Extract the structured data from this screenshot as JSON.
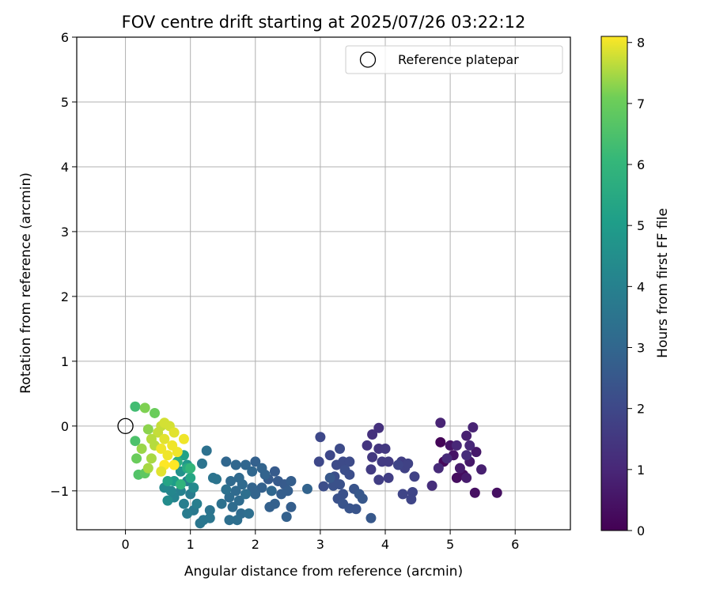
{
  "chart_data": {
    "type": "scatter",
    "title": "FOV centre drift starting at 2025/07/26 03:22:12",
    "xlabel": "Angular distance from reference (arcmin)",
    "ylabel": "Rotation from reference (arcmin)",
    "xlim": [
      -0.75,
      6.85
    ],
    "ylim": [
      -1.6,
      6.0
    ],
    "xticks": [
      "0",
      "1",
      "2",
      "3",
      "4",
      "5",
      "6"
    ],
    "yticks": [
      "−1",
      "0",
      "1",
      "2",
      "3",
      "4",
      "5",
      "6"
    ],
    "grid": true,
    "legend": {
      "position": "top-right",
      "entries": [
        "Reference platepar"
      ]
    },
    "reference_point": {
      "x": 0,
      "y": 0
    },
    "colorbar": {
      "label": "Hours from first FF file",
      "range": [
        0,
        8.1
      ],
      "ticks": [
        "0",
        "1",
        "2",
        "3",
        "4",
        "5",
        "6",
        "7",
        "8"
      ],
      "colormap": "viridis"
    },
    "points": [
      {
        "x": 4.85,
        "y": -0.25,
        "c": 0.1
      },
      {
        "x": 4.9,
        "y": -0.55,
        "c": 0.2
      },
      {
        "x": 5.1,
        "y": -0.8,
        "c": 0.3
      },
      {
        "x": 5.2,
        "y": -0.75,
        "c": 0.3
      },
      {
        "x": 5.38,
        "y": -1.03,
        "c": 0.4
      },
      {
        "x": 5.72,
        "y": -1.03,
        "c": 0.4
      },
      {
        "x": 5.0,
        "y": -0.3,
        "c": 0.5
      },
      {
        "x": 5.05,
        "y": -0.45,
        "c": 0.5
      },
      {
        "x": 5.3,
        "y": -0.55,
        "c": 0.6
      },
      {
        "x": 5.4,
        "y": -0.4,
        "c": 0.6
      },
      {
        "x": 5.15,
        "y": -0.65,
        "c": 0.7
      },
      {
        "x": 5.25,
        "y": -0.8,
        "c": 0.7
      },
      {
        "x": 5.48,
        "y": -0.67,
        "c": 0.8
      },
      {
        "x": 5.25,
        "y": -0.15,
        "c": 0.8
      },
      {
        "x": 5.35,
        "y": -0.02,
        "c": 0.9
      },
      {
        "x": 4.85,
        "y": 0.05,
        "c": 0.9
      },
      {
        "x": 5.3,
        "y": -0.3,
        "c": 1.0
      },
      {
        "x": 5.1,
        "y": -0.3,
        "c": 1.0
      },
      {
        "x": 4.95,
        "y": -0.5,
        "c": 1.1
      },
      {
        "x": 4.82,
        "y": -0.65,
        "c": 1.1
      },
      {
        "x": 4.72,
        "y": -0.92,
        "c": 1.2
      },
      {
        "x": 5.25,
        "y": -0.45,
        "c": 1.2
      },
      {
        "x": 3.9,
        "y": -0.03,
        "c": 1.3
      },
      {
        "x": 3.8,
        "y": -0.13,
        "c": 1.3
      },
      {
        "x": 3.72,
        "y": -0.3,
        "c": 1.4
      },
      {
        "x": 3.9,
        "y": -0.35,
        "c": 1.4
      },
      {
        "x": 4.0,
        "y": -0.35,
        "c": 1.5
      },
      {
        "x": 3.8,
        "y": -0.48,
        "c": 1.5
      },
      {
        "x": 3.95,
        "y": -0.55,
        "c": 1.6
      },
      {
        "x": 4.05,
        "y": -0.55,
        "c": 1.6
      },
      {
        "x": 3.78,
        "y": -0.67,
        "c": 1.6
      },
      {
        "x": 3.9,
        "y": -0.83,
        "c": 1.7
      },
      {
        "x": 4.05,
        "y": -0.8,
        "c": 1.7
      },
      {
        "x": 4.25,
        "y": -0.55,
        "c": 1.7
      },
      {
        "x": 4.3,
        "y": -0.65,
        "c": 1.8
      },
      {
        "x": 4.35,
        "y": -0.58,
        "c": 1.8
      },
      {
        "x": 4.45,
        "y": -0.78,
        "c": 1.8
      },
      {
        "x": 4.27,
        "y": -1.05,
        "c": 1.9
      },
      {
        "x": 4.42,
        "y": -1.02,
        "c": 1.9
      },
      {
        "x": 4.4,
        "y": -1.13,
        "c": 1.9
      },
      {
        "x": 4.2,
        "y": -0.6,
        "c": 1.9
      },
      {
        "x": 3.0,
        "y": -0.17,
        "c": 2.0
      },
      {
        "x": 3.15,
        "y": -0.45,
        "c": 2.0
      },
      {
        "x": 2.98,
        "y": -0.55,
        "c": 2.0
      },
      {
        "x": 3.3,
        "y": -0.35,
        "c": 2.1
      },
      {
        "x": 3.25,
        "y": -0.6,
        "c": 2.1
      },
      {
        "x": 3.35,
        "y": -0.55,
        "c": 2.1
      },
      {
        "x": 3.45,
        "y": -0.55,
        "c": 2.1
      },
      {
        "x": 3.38,
        "y": -0.68,
        "c": 2.2
      },
      {
        "x": 3.45,
        "y": -0.75,
        "c": 2.2
      },
      {
        "x": 3.22,
        "y": -0.78,
        "c": 2.2
      },
      {
        "x": 3.05,
        "y": -0.93,
        "c": 2.2
      },
      {
        "x": 3.2,
        "y": -0.92,
        "c": 2.3
      },
      {
        "x": 3.3,
        "y": -0.9,
        "c": 2.3
      },
      {
        "x": 3.35,
        "y": -1.05,
        "c": 2.3
      },
      {
        "x": 3.27,
        "y": -1.12,
        "c": 2.3
      },
      {
        "x": 3.35,
        "y": -1.2,
        "c": 2.4
      },
      {
        "x": 3.45,
        "y": -1.27,
        "c": 2.4
      },
      {
        "x": 3.55,
        "y": -1.28,
        "c": 2.4
      },
      {
        "x": 3.52,
        "y": -0.97,
        "c": 2.4
      },
      {
        "x": 3.6,
        "y": -1.05,
        "c": 2.5
      },
      {
        "x": 3.65,
        "y": -1.12,
        "c": 2.5
      },
      {
        "x": 3.78,
        "y": -1.42,
        "c": 2.5
      },
      {
        "x": 3.15,
        "y": -0.8,
        "c": 2.5
      },
      {
        "x": 2.3,
        "y": -0.7,
        "c": 2.6
      },
      {
        "x": 2.2,
        "y": -0.82,
        "c": 2.6
      },
      {
        "x": 2.35,
        "y": -0.85,
        "c": 2.6
      },
      {
        "x": 2.45,
        "y": -0.9,
        "c": 2.6
      },
      {
        "x": 2.55,
        "y": -0.85,
        "c": 2.7
      },
      {
        "x": 2.5,
        "y": -1.0,
        "c": 2.7
      },
      {
        "x": 2.4,
        "y": -1.05,
        "c": 2.7
      },
      {
        "x": 2.55,
        "y": -1.25,
        "c": 2.7
      },
      {
        "x": 2.48,
        "y": -1.4,
        "c": 2.8
      },
      {
        "x": 2.3,
        "y": -1.2,
        "c": 2.8
      },
      {
        "x": 2.22,
        "y": -1.25,
        "c": 2.8
      },
      {
        "x": 2.1,
        "y": -0.95,
        "c": 2.8
      },
      {
        "x": 2.0,
        "y": -0.55,
        "c": 2.8
      },
      {
        "x": 2.1,
        "y": -0.65,
        "c": 2.9
      },
      {
        "x": 2.15,
        "y": -0.75,
        "c": 2.9
      },
      {
        "x": 2.0,
        "y": -1.05,
        "c": 2.9
      },
      {
        "x": 1.95,
        "y": -0.95,
        "c": 2.9
      },
      {
        "x": 2.8,
        "y": -0.97,
        "c": 2.9
      },
      {
        "x": 2.25,
        "y": -1.0,
        "c": 3.0
      },
      {
        "x": 1.55,
        "y": -0.55,
        "c": 3.0
      },
      {
        "x": 1.7,
        "y": -0.6,
        "c": 3.0
      },
      {
        "x": 1.85,
        "y": -0.6,
        "c": 3.0
      },
      {
        "x": 1.75,
        "y": -0.8,
        "c": 3.1
      },
      {
        "x": 1.62,
        "y": -0.85,
        "c": 3.1
      },
      {
        "x": 1.8,
        "y": -0.9,
        "c": 3.1
      },
      {
        "x": 1.7,
        "y": -1.0,
        "c": 3.1
      },
      {
        "x": 1.6,
        "y": -1.1,
        "c": 3.2
      },
      {
        "x": 1.75,
        "y": -1.15,
        "c": 3.2
      },
      {
        "x": 1.65,
        "y": -1.25,
        "c": 3.2
      },
      {
        "x": 1.78,
        "y": -1.35,
        "c": 3.2
      },
      {
        "x": 1.72,
        "y": -1.45,
        "c": 3.3
      },
      {
        "x": 1.6,
        "y": -1.45,
        "c": 3.3
      },
      {
        "x": 1.9,
        "y": -1.35,
        "c": 3.3
      },
      {
        "x": 1.85,
        "y": -1.05,
        "c": 3.3
      },
      {
        "x": 1.55,
        "y": -0.98,
        "c": 3.4
      },
      {
        "x": 1.48,
        "y": -1.2,
        "c": 3.4
      },
      {
        "x": 1.25,
        "y": -0.38,
        "c": 3.4
      },
      {
        "x": 1.18,
        "y": -0.58,
        "c": 3.5
      },
      {
        "x": 1.35,
        "y": -0.8,
        "c": 3.5
      },
      {
        "x": 1.4,
        "y": -0.82,
        "c": 3.5
      },
      {
        "x": 1.3,
        "y": -1.3,
        "c": 3.5
      },
      {
        "x": 1.2,
        "y": -1.45,
        "c": 3.6
      },
      {
        "x": 1.15,
        "y": -1.5,
        "c": 3.6
      },
      {
        "x": 1.3,
        "y": -1.42,
        "c": 3.6
      },
      {
        "x": 1.05,
        "y": -1.3,
        "c": 3.7
      },
      {
        "x": 1.95,
        "y": -0.7,
        "c": 3.0
      },
      {
        "x": 1.0,
        "y": -1.05,
        "c": 3.8
      },
      {
        "x": 0.9,
        "y": -1.2,
        "c": 3.9
      },
      {
        "x": 1.1,
        "y": -1.2,
        "c": 3.9
      },
      {
        "x": 0.85,
        "y": -1.0,
        "c": 4.0
      },
      {
        "x": 0.95,
        "y": -0.85,
        "c": 4.0
      },
      {
        "x": 0.75,
        "y": -1.1,
        "c": 4.1
      },
      {
        "x": 0.7,
        "y": -1.0,
        "c": 4.2
      },
      {
        "x": 0.6,
        "y": -0.95,
        "c": 4.3
      },
      {
        "x": 1.05,
        "y": -0.95,
        "c": 4.3
      },
      {
        "x": 0.65,
        "y": -1.15,
        "c": 4.4
      },
      {
        "x": 0.95,
        "y": -1.35,
        "c": 3.8
      },
      {
        "x": 0.85,
        "y": -0.7,
        "c": 4.6
      },
      {
        "x": 0.95,
        "y": -0.6,
        "c": 4.8
      },
      {
        "x": 0.75,
        "y": -0.85,
        "c": 5.0
      },
      {
        "x": 0.9,
        "y": -0.45,
        "c": 5.2
      },
      {
        "x": 0.65,
        "y": -0.85,
        "c": 5.3
      },
      {
        "x": 1.0,
        "y": -0.8,
        "c": 5.4
      },
      {
        "x": 0.95,
        "y": -0.65,
        "c": 5.5
      },
      {
        "x": 0.8,
        "y": -0.55,
        "c": 5.7
      },
      {
        "x": 0.85,
        "y": -0.9,
        "c": 5.9
      },
      {
        "x": 1.0,
        "y": -0.65,
        "c": 6.0
      },
      {
        "x": 0.15,
        "y": 0.3,
        "c": 6.3
      },
      {
        "x": 0.15,
        "y": -0.23,
        "c": 6.5
      },
      {
        "x": 0.2,
        "y": -0.75,
        "c": 6.6
      },
      {
        "x": 0.3,
        "y": -0.73,
        "c": 6.8
      },
      {
        "x": 0.17,
        "y": -0.5,
        "c": 7.0
      },
      {
        "x": 0.45,
        "y": 0.2,
        "c": 7.0
      },
      {
        "x": 0.3,
        "y": 0.28,
        "c": 7.2
      },
      {
        "x": 0.35,
        "y": -0.05,
        "c": 7.3
      },
      {
        "x": 0.25,
        "y": -0.35,
        "c": 7.4
      },
      {
        "x": 0.4,
        "y": -0.5,
        "c": 7.5
      },
      {
        "x": 0.35,
        "y": -0.65,
        "c": 7.5
      },
      {
        "x": 0.45,
        "y": -0.3,
        "c": 7.6
      },
      {
        "x": 0.5,
        "y": -0.1,
        "c": 7.7
      },
      {
        "x": 0.55,
        "y": 0.0,
        "c": 7.7
      },
      {
        "x": 0.6,
        "y": 0.05,
        "c": 7.8
      },
      {
        "x": 0.68,
        "y": 0.0,
        "c": 7.8
      },
      {
        "x": 0.75,
        "y": -0.1,
        "c": 7.9
      },
      {
        "x": 0.6,
        "y": -0.2,
        "c": 7.9
      },
      {
        "x": 0.55,
        "y": -0.35,
        "c": 8.0
      },
      {
        "x": 0.72,
        "y": -0.3,
        "c": 8.0
      },
      {
        "x": 0.8,
        "y": -0.4,
        "c": 8.0
      },
      {
        "x": 0.6,
        "y": -0.6,
        "c": 8.1
      },
      {
        "x": 0.75,
        "y": -0.6,
        "c": 8.1
      },
      {
        "x": 0.9,
        "y": -0.2,
        "c": 8.0
      },
      {
        "x": 0.55,
        "y": -0.7,
        "c": 7.9
      },
      {
        "x": 0.4,
        "y": -0.2,
        "c": 7.6
      },
      {
        "x": 0.65,
        "y": -0.45,
        "c": 8.0
      }
    ]
  }
}
